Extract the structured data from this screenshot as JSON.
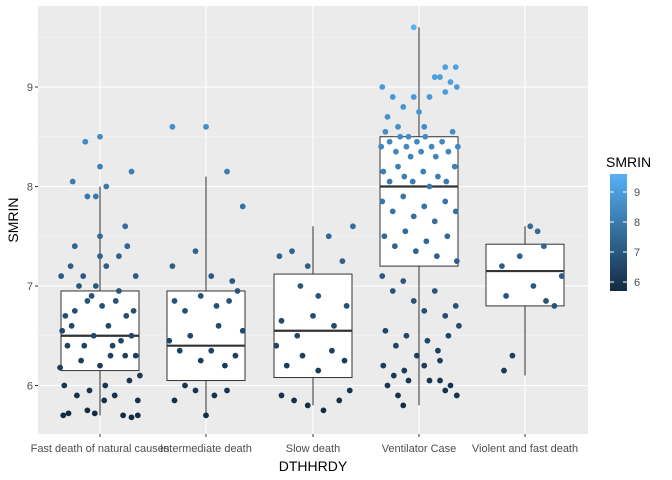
{
  "chart_data": {
    "type": "box-jitter",
    "xlabel": "DTHHRDY",
    "ylabel": "SMRIN",
    "ylim": [
      5.5,
      9.8
    ],
    "yticks": [
      6,
      7,
      8,
      9
    ],
    "grid": true,
    "legend": {
      "title": "SMRIN",
      "placement": "right",
      "gradient_low": "#132B43",
      "gradient_high": "#56B1F7",
      "range": [
        5.7,
        9.6
      ],
      "ticks": [
        6,
        7,
        8,
        9
      ]
    },
    "categories": [
      "Fast death of natural causes",
      "Intermediate death",
      "Slow death",
      "Ventilator Case",
      "Violent and fast death"
    ],
    "boxes": [
      {
        "category": "Fast death of natural causes",
        "q1": 6.15,
        "median": 6.5,
        "q3": 6.95,
        "whisker_low": 5.7,
        "whisker_high": 8.0,
        "outliers": [
          8.2,
          8.5
        ]
      },
      {
        "category": "Intermediate death",
        "q1": 6.05,
        "median": 6.4,
        "q3": 6.95,
        "whisker_low": 5.7,
        "whisker_high": 8.1,
        "outliers": [
          8.6
        ]
      },
      {
        "category": "Slow death",
        "q1": 6.08,
        "median": 6.55,
        "q3": 7.12,
        "whisker_low": 5.8,
        "whisker_high": 7.6,
        "outliers": []
      },
      {
        "category": "Ventilator Case",
        "q1": 7.2,
        "median": 8.0,
        "q3": 8.5,
        "whisker_low": 5.8,
        "whisker_high": 9.6,
        "outliers": []
      },
      {
        "category": "Violent and fast death",
        "q1": 6.8,
        "median": 7.15,
        "q3": 7.42,
        "whisker_low": 6.1,
        "whisker_high": 7.6,
        "outliers": []
      }
    ],
    "points": [
      [
        [
          -0.35,
          5.7
        ],
        [
          -0.3,
          5.72
        ],
        [
          -0.12,
          5.75
        ],
        [
          -0.05,
          5.72
        ],
        [
          0.22,
          5.7
        ],
        [
          0.3,
          5.68
        ],
        [
          0.36,
          5.7
        ],
        [
          -0.38,
          6.18
        ],
        [
          -0.33,
          6.7
        ],
        [
          -0.27,
          6.6
        ],
        [
          -0.2,
          7.0
        ],
        [
          -0.15,
          6.4
        ],
        [
          -0.08,
          6.9
        ],
        [
          0.0,
          6.2
        ],
        [
          0.05,
          6.0
        ],
        [
          0.1,
          6.3
        ],
        [
          0.15,
          6.85
        ],
        [
          0.2,
          6.45
        ],
        [
          0.25,
          6.7
        ],
        [
          0.3,
          6.5
        ],
        [
          0.34,
          6.3
        ],
        [
          0.38,
          6.1
        ],
        [
          -0.36,
          6.55
        ],
        [
          -0.31,
          6.4
        ],
        [
          -0.24,
          6.75
        ],
        [
          -0.18,
          6.25
        ],
        [
          -0.12,
          6.85
        ],
        [
          -0.06,
          6.5
        ],
        [
          0.02,
          6.8
        ],
        [
          0.08,
          6.6
        ],
        [
          0.12,
          6.4
        ],
        [
          0.18,
          6.95
        ],
        [
          0.24,
          6.3
        ],
        [
          0.32,
          6.75
        ],
        [
          -0.34,
          6.0
        ],
        [
          -0.22,
          5.9
        ],
        [
          -0.1,
          5.95
        ],
        [
          0.04,
          5.85
        ],
        [
          0.14,
          5.9
        ],
        [
          0.28,
          6.05
        ],
        [
          0.36,
          5.85
        ],
        [
          -0.37,
          7.1
        ],
        [
          -0.28,
          7.2
        ],
        [
          -0.16,
          7.1
        ],
        [
          -0.04,
          7.0
        ],
        [
          0.06,
          7.2
        ],
        [
          0.18,
          7.3
        ],
        [
          0.26,
          7.4
        ],
        [
          0.34,
          7.1
        ],
        [
          -0.26,
          8.05
        ],
        [
          -0.14,
          8.45
        ],
        [
          -0.12,
          7.9
        ],
        [
          -0.04,
          7.9
        ],
        [
          0.0,
          7.5
        ],
        [
          0.06,
          8.0
        ],
        [
          0.24,
          7.6
        ],
        [
          0.3,
          8.15
        ],
        [
          -0.24,
          7.4
        ],
        [
          0.0,
          7.3
        ],
        [
          0.0,
          8.2
        ],
        [
          0.0,
          8.5
        ]
      ],
      [
        [
          -0.3,
          5.85
        ],
        [
          -0.2,
          6.0
        ],
        [
          -0.1,
          5.95
        ],
        [
          0.0,
          5.7
        ],
        [
          0.08,
          5.9
        ],
        [
          0.2,
          5.95
        ],
        [
          -0.35,
          6.45
        ],
        [
          -0.25,
          6.35
        ],
        [
          -0.15,
          6.5
        ],
        [
          -0.05,
          6.25
        ],
        [
          0.05,
          6.35
        ],
        [
          0.12,
          6.6
        ],
        [
          0.18,
          6.2
        ],
        [
          0.28,
          6.3
        ],
        [
          0.35,
          6.55
        ],
        [
          -0.3,
          6.85
        ],
        [
          -0.2,
          6.75
        ],
        [
          -0.05,
          6.9
        ],
        [
          0.1,
          6.8
        ],
        [
          0.22,
          6.85
        ],
        [
          0.3,
          6.95
        ],
        [
          -0.32,
          7.2
        ],
        [
          -0.1,
          7.35
        ],
        [
          0.05,
          7.1
        ],
        [
          0.25,
          7.05
        ],
        [
          0.35,
          7.8
        ],
        [
          0.2,
          8.15
        ],
        [
          -0.32,
          8.6
        ],
        [
          0.0,
          8.6
        ]
      ],
      [
        [
          -0.3,
          5.9
        ],
        [
          -0.18,
          5.85
        ],
        [
          -0.05,
          5.8
        ],
        [
          0.1,
          5.75
        ],
        [
          0.25,
          5.85
        ],
        [
          0.35,
          5.95
        ],
        [
          -0.35,
          6.4
        ],
        [
          -0.25,
          6.2
        ],
        [
          -0.1,
          6.3
        ],
        [
          0.05,
          6.15
        ],
        [
          0.18,
          6.35
        ],
        [
          0.3,
          6.25
        ],
        [
          -0.3,
          6.65
        ],
        [
          -0.15,
          6.5
        ],
        [
          0.0,
          6.7
        ],
        [
          0.2,
          6.6
        ],
        [
          0.32,
          6.8
        ],
        [
          -0.32,
          7.3
        ],
        [
          -0.2,
          7.35
        ],
        [
          -0.05,
          7.2
        ],
        [
          0.15,
          7.5
        ],
        [
          0.28,
          7.25
        ],
        [
          0.38,
          7.6
        ],
        [
          0.05,
          6.9
        ],
        [
          -0.12,
          7.0
        ]
      ],
      [
        [
          -0.35,
          9.0
        ],
        [
          -0.3,
          8.7
        ],
        [
          -0.25,
          8.9
        ],
        [
          -0.2,
          8.6
        ],
        [
          -0.15,
          8.8
        ],
        [
          -0.1,
          8.5
        ],
        [
          -0.05,
          8.9
        ],
        [
          0.0,
          8.75
        ],
        [
          0.05,
          8.6
        ],
        [
          0.1,
          8.9
        ],
        [
          0.15,
          9.1
        ],
        [
          0.2,
          9.1
        ],
        [
          0.25,
          8.95
        ],
        [
          0.3,
          9.05
        ],
        [
          0.36,
          9.0
        ],
        [
          -0.05,
          9.6
        ],
        [
          0.35,
          9.2
        ],
        [
          0.25,
          9.2
        ],
        [
          -0.36,
          8.4
        ],
        [
          -0.32,
          8.55
        ],
        [
          -0.28,
          8.45
        ],
        [
          -0.22,
          8.35
        ],
        [
          -0.18,
          8.5
        ],
        [
          -0.12,
          8.4
        ],
        [
          -0.08,
          8.3
        ],
        [
          -0.02,
          8.45
        ],
        [
          0.02,
          8.35
        ],
        [
          0.06,
          8.5
        ],
        [
          0.12,
          8.4
        ],
        [
          0.16,
          8.3
        ],
        [
          0.22,
          8.45
        ],
        [
          0.28,
          8.35
        ],
        [
          0.32,
          8.55
        ],
        [
          0.37,
          8.4
        ],
        [
          -0.34,
          8.15
        ],
        [
          -0.28,
          8.05
        ],
        [
          -0.2,
          8.2
        ],
        [
          -0.14,
          8.1
        ],
        [
          -0.06,
          8.05
        ],
        [
          0.04,
          8.15
        ],
        [
          0.1,
          8.0
        ],
        [
          0.18,
          8.1
        ],
        [
          0.26,
          8.05
        ],
        [
          0.34,
          8.2
        ],
        [
          -0.35,
          7.85
        ],
        [
          -0.25,
          7.75
        ],
        [
          -0.15,
          7.9
        ],
        [
          -0.05,
          7.7
        ],
        [
          0.05,
          7.8
        ],
        [
          0.15,
          7.65
        ],
        [
          0.25,
          7.85
        ],
        [
          0.35,
          7.75
        ],
        [
          -0.33,
          7.5
        ],
        [
          -0.23,
          7.4
        ],
        [
          -0.13,
          7.55
        ],
        [
          -0.03,
          7.35
        ],
        [
          0.07,
          7.45
        ],
        [
          0.17,
          7.3
        ],
        [
          0.27,
          7.5
        ],
        [
          0.36,
          7.25
        ],
        [
          -0.35,
          7.1
        ],
        [
          -0.25,
          6.95
        ],
        [
          -0.15,
          7.05
        ],
        [
          -0.05,
          6.85
        ],
        [
          0.05,
          6.75
        ],
        [
          0.15,
          6.95
        ],
        [
          0.25,
          6.7
        ],
        [
          0.35,
          6.8
        ],
        [
          -0.32,
          6.55
        ],
        [
          -0.22,
          6.4
        ],
        [
          -0.12,
          6.5
        ],
        [
          -0.02,
          6.3
        ],
        [
          0.08,
          6.45
        ],
        [
          0.18,
          6.35
        ],
        [
          0.28,
          6.5
        ],
        [
          0.38,
          6.6
        ],
        [
          -0.34,
          6.2
        ],
        [
          -0.24,
          6.1
        ],
        [
          -0.14,
          6.15
        ],
        [
          0.05,
          6.2
        ],
        [
          0.2,
          6.25
        ],
        [
          -0.3,
          6.0
        ],
        [
          -0.2,
          5.9
        ],
        [
          -0.1,
          6.05
        ],
        [
          0.1,
          6.05
        ],
        [
          0.2,
          6.05
        ],
        [
          0.3,
          6.0
        ],
        [
          0.36,
          5.9
        ],
        [
          -0.15,
          5.8
        ],
        [
          0.25,
          5.95
        ]
      ],
      [
        [
          -0.22,
          7.2
        ],
        [
          -0.18,
          6.9
        ],
        [
          -0.12,
          6.3
        ],
        [
          -0.05,
          7.3
        ],
        [
          0.08,
          7.0
        ],
        [
          0.12,
          7.55
        ],
        [
          0.18,
          7.4
        ],
        [
          0.2,
          6.85
        ],
        [
          0.28,
          6.8
        ],
        [
          0.35,
          7.1
        ],
        [
          -0.2,
          6.15
        ],
        [
          0.05,
          7.6
        ]
      ]
    ]
  }
}
